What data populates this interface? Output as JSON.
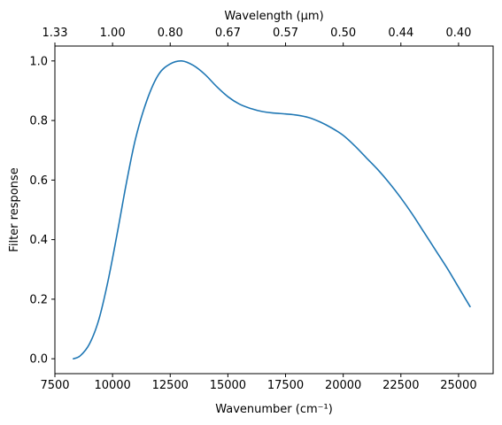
{
  "chart_data": {
    "type": "line",
    "xlabel": "Wavenumber (cm⁻¹)",
    "ylabel": "Filter response",
    "top_xlabel": "Wavelength (μm)",
    "xlim": [
      7500,
      26500
    ],
    "ylim": [
      -0.05,
      1.05
    ],
    "x_ticks": [
      7500,
      10000,
      12500,
      15000,
      17500,
      20000,
      22500,
      25000
    ],
    "x_tick_labels": [
      "7500",
      "10000",
      "12500",
      "15000",
      "17500",
      "20000",
      "22500",
      "25000"
    ],
    "y_ticks": [
      0.0,
      0.2,
      0.4,
      0.6,
      0.8,
      1.0
    ],
    "y_tick_labels": [
      "0.0",
      "0.2",
      "0.4",
      "0.6",
      "0.8",
      "1.0"
    ],
    "top_ticks": [
      {
        "wavenumber": 7500,
        "label": "1.33"
      },
      {
        "wavenumber": 10000,
        "label": "1.00"
      },
      {
        "wavenumber": 12500,
        "label": "0.80"
      },
      {
        "wavenumber": 15000,
        "label": "0.67"
      },
      {
        "wavenumber": 17500,
        "label": "0.57"
      },
      {
        "wavenumber": 20000,
        "label": "0.50"
      },
      {
        "wavenumber": 22500,
        "label": "0.44"
      },
      {
        "wavenumber": 25000,
        "label": "0.40"
      }
    ],
    "grid": false,
    "series": [
      {
        "color": "#1f77b4",
        "x": [
          8300,
          8600,
          9000,
          9400,
          9800,
          10200,
          10600,
          11000,
          11500,
          12000,
          12500,
          13000,
          13500,
          14000,
          14500,
          15000,
          15500,
          16000,
          16500,
          17000,
          17500,
          18000,
          18500,
          19000,
          19500,
          20000,
          20500,
          21000,
          21500,
          22000,
          22500,
          23000,
          23500,
          24000,
          24500,
          25000,
          25500
        ],
        "y": [
          0.0,
          0.01,
          0.05,
          0.13,
          0.26,
          0.42,
          0.59,
          0.74,
          0.87,
          0.955,
          0.99,
          1.0,
          0.985,
          0.955,
          0.915,
          0.88,
          0.855,
          0.84,
          0.83,
          0.825,
          0.822,
          0.818,
          0.81,
          0.795,
          0.775,
          0.75,
          0.715,
          0.675,
          0.635,
          0.59,
          0.54,
          0.485,
          0.425,
          0.365,
          0.305,
          0.24,
          0.175
        ]
      }
    ]
  }
}
